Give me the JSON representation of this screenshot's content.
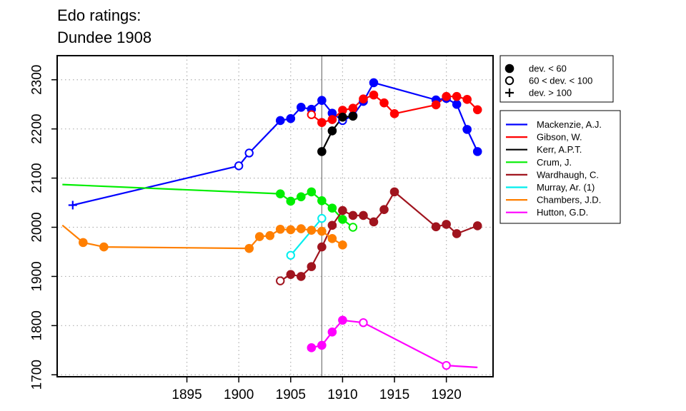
{
  "chart_data": {
    "type": "line",
    "title_lines": [
      "Edo ratings:",
      "Dundee 1908"
    ],
    "xlabel": "",
    "ylabel": "",
    "xlim": [
      1882.5,
      1924.5
    ],
    "ylim": [
      1696,
      2349
    ],
    "x_ticks": [
      1895,
      1900,
      1905,
      1910,
      1915,
      1920
    ],
    "y_ticks": [
      1700,
      1800,
      1900,
      2000,
      2100,
      2200,
      2300
    ],
    "grid": true,
    "reference_line_x": 1908,
    "marker_legend": [
      {
        "marker": "filled",
        "label": "dev. < 60"
      },
      {
        "marker": "open",
        "label": "60 < dev. < 100"
      },
      {
        "marker": "plus",
        "label": "dev. > 100"
      }
    ],
    "series": [
      {
        "name": "Mackenzie, A.J.",
        "color": "#0000ff",
        "points": [
          [
            1884,
            2045,
            "plus"
          ],
          [
            1900,
            2125,
            "open"
          ],
          [
            1901,
            2151,
            "open"
          ],
          [
            1904,
            2217,
            "filled"
          ],
          [
            1905,
            2221,
            "filled"
          ],
          [
            1906,
            2244,
            "filled"
          ],
          [
            1907,
            2240,
            "filled"
          ],
          [
            1908,
            2258,
            "filled"
          ],
          [
            1909,
            2232,
            "filled"
          ],
          [
            1910,
            2217,
            "open"
          ],
          [
            1911,
            2227,
            "filled"
          ],
          [
            1912,
            2256,
            "filled"
          ],
          [
            1913,
            2294,
            "filled"
          ],
          [
            1919,
            2259,
            "filled"
          ],
          [
            1920,
            2262,
            "filled"
          ],
          [
            1921,
            2250,
            "filled"
          ],
          [
            1922,
            2199,
            "filled"
          ],
          [
            1923,
            2154,
            "filled"
          ]
        ]
      },
      {
        "name": "Gibson, W.",
        "color": "#ff0000",
        "points": [
          [
            1907,
            2229,
            "open"
          ],
          [
            1908,
            2213,
            "filled"
          ],
          [
            1909,
            2219,
            "filled"
          ],
          [
            1910,
            2238,
            "filled"
          ],
          [
            1911,
            2242,
            "filled"
          ],
          [
            1912,
            2261,
            "filled"
          ],
          [
            1913,
            2269,
            "filled"
          ],
          [
            1914,
            2253,
            "filled"
          ],
          [
            1915,
            2231,
            "filled"
          ],
          [
            1919,
            2249,
            "filled"
          ],
          [
            1920,
            2266,
            "filled"
          ],
          [
            1921,
            2266,
            "filled"
          ],
          [
            1922,
            2260,
            "filled"
          ],
          [
            1923,
            2239,
            "filled"
          ]
        ]
      },
      {
        "name": "Kerr, A.P.T.",
        "color": "#000000",
        "points": [
          [
            1908,
            2154,
            "filled"
          ],
          [
            1909,
            2196,
            "filled"
          ],
          [
            1910,
            2224,
            "filled"
          ],
          [
            1911,
            2226,
            "filled"
          ]
        ]
      },
      {
        "name": "Crum, J.",
        "color": "#00ee00",
        "points": [
          [
            1883,
            2087,
            "none"
          ],
          [
            1904,
            2068,
            "filled"
          ],
          [
            1905,
            2053,
            "filled"
          ],
          [
            1906,
            2062,
            "filled"
          ],
          [
            1907,
            2072,
            "filled"
          ],
          [
            1908,
            2054,
            "filled"
          ],
          [
            1909,
            2039,
            "filled"
          ],
          [
            1910,
            2016,
            "filled"
          ],
          [
            1911,
            2000,
            "open"
          ]
        ]
      },
      {
        "name": "Wardhaugh, C.",
        "color": "#a0141e",
        "points": [
          [
            1904,
            1891,
            "open"
          ],
          [
            1905,
            1904,
            "filled"
          ],
          [
            1906,
            1900,
            "filled"
          ],
          [
            1907,
            1920,
            "filled"
          ],
          [
            1908,
            1960,
            "filled"
          ],
          [
            1909,
            2004,
            "filled"
          ],
          [
            1910,
            2034,
            "filled"
          ],
          [
            1911,
            2024,
            "filled"
          ],
          [
            1912,
            2024,
            "filled"
          ],
          [
            1913,
            2011,
            "filled"
          ],
          [
            1914,
            2036,
            "filled"
          ],
          [
            1915,
            2072,
            "filled"
          ],
          [
            1919,
            2001,
            "filled"
          ],
          [
            1920,
            2006,
            "filled"
          ],
          [
            1921,
            1987,
            "filled"
          ],
          [
            1923,
            2003,
            "filled"
          ]
        ]
      },
      {
        "name": "Murray, Ar. (1)",
        "color": "#00eeee",
        "points": [
          [
            1905,
            1943,
            "open"
          ],
          [
            1908,
            2018,
            "open"
          ]
        ]
      },
      {
        "name": "Chambers, J.D.",
        "color": "#ff7f00",
        "points": [
          [
            1883,
            2004,
            "none"
          ],
          [
            1885,
            1969,
            "filled"
          ],
          [
            1887,
            1960,
            "filled"
          ],
          [
            1901,
            1957,
            "filled"
          ],
          [
            1902,
            1981,
            "filled"
          ],
          [
            1903,
            1983,
            "filled"
          ],
          [
            1904,
            1996,
            "filled"
          ],
          [
            1905,
            1995,
            "filled"
          ],
          [
            1906,
            1997,
            "filled"
          ],
          [
            1907,
            1994,
            "filled"
          ],
          [
            1908,
            1992,
            "filled"
          ],
          [
            1909,
            1977,
            "filled"
          ],
          [
            1910,
            1964,
            "filled"
          ]
        ]
      },
      {
        "name": "Hutton, G.D.",
        "color": "#ff00ff",
        "points": [
          [
            1907,
            1755,
            "filled"
          ],
          [
            1908,
            1760,
            "filled"
          ],
          [
            1909,
            1787,
            "filled"
          ],
          [
            1910,
            1811,
            "filled"
          ],
          [
            1912,
            1806,
            "open"
          ],
          [
            1920,
            1719,
            "open"
          ],
          [
            1923,
            1715,
            "none"
          ]
        ]
      }
    ]
  }
}
